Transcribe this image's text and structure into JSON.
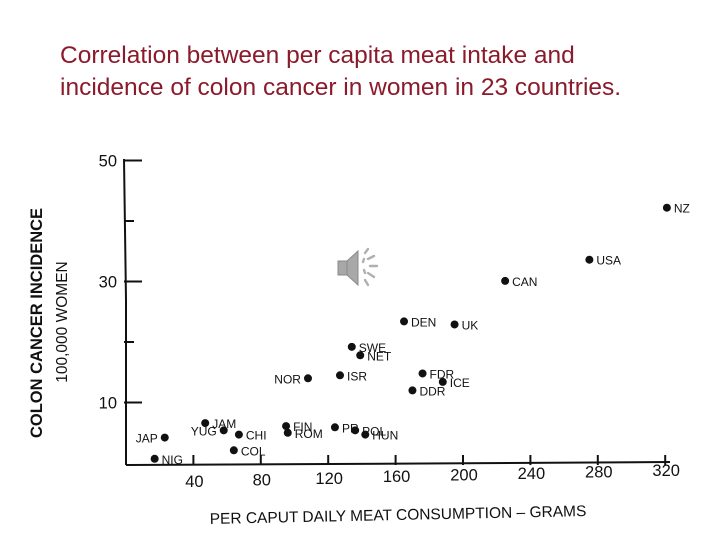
{
  "slide": {
    "title_line1": "Correlation between per capita meat intake and",
    "title_line2": "incidence of colon cancer in women in 23 countries."
  },
  "colors": {
    "title": "#8B1A2B",
    "ink": "#111111",
    "audio_icon": "#9a9a9a"
  },
  "icons": {
    "audio": "speaker-sound-icon"
  },
  "chart_data": {
    "type": "scatter",
    "title": "",
    "xlabel": "PER CAPUT DAILY MEAT CONSUMPTION – GRAMS",
    "ylabel_line1": "COLON CANCER INCIDENCE",
    "ylabel_line2": "100,000 WOMEN",
    "xlim": [
      0,
      330
    ],
    "ylim": [
      0,
      50
    ],
    "x_ticks": [
      40,
      80,
      120,
      160,
      200,
      240,
      280,
      320
    ],
    "y_ticks": [
      10,
      30,
      50
    ],
    "y_minor_ticks": [
      20,
      40
    ],
    "grid": false,
    "legend": "none",
    "points": [
      {
        "label": "NIG",
        "x": 17,
        "y": 0.7
      },
      {
        "label": "JAP",
        "x": 23,
        "y": 4.2
      },
      {
        "label": "JAM",
        "x": 47,
        "y": 6.6
      },
      {
        "label": "YUG",
        "x": 58,
        "y": 5.4
      },
      {
        "label": "CHI",
        "x": 67,
        "y": 4.7
      },
      {
        "label": "COL",
        "x": 64,
        "y": 2.1
      },
      {
        "label": "FIN",
        "x": 95,
        "y": 6.1
      },
      {
        "label": "ROM",
        "x": 96,
        "y": 5.0
      },
      {
        "label": "NOR",
        "x": 108,
        "y": 14.0
      },
      {
        "label": "PR",
        "x": 124,
        "y": 5.9
      },
      {
        "label": "ISR",
        "x": 127,
        "y": 14.5
      },
      {
        "label": "SWE",
        "x": 134,
        "y": 19.2
      },
      {
        "label": "NET",
        "x": 139,
        "y": 17.8
      },
      {
        "label": "POL",
        "x": 136,
        "y": 5.4
      },
      {
        "label": "HUN",
        "x": 142,
        "y": 4.7
      },
      {
        "label": "DEN",
        "x": 165,
        "y": 23.4
      },
      {
        "label": "FDR",
        "x": 176,
        "y": 14.8
      },
      {
        "label": "DDR",
        "x": 170,
        "y": 12.0
      },
      {
        "label": "ICE",
        "x": 188,
        "y": 13.4
      },
      {
        "label": "UK",
        "x": 195,
        "y": 22.9
      },
      {
        "label": "CAN",
        "x": 225,
        "y": 30.1
      },
      {
        "label": "USA",
        "x": 275,
        "y": 33.6
      },
      {
        "label": "NZ",
        "x": 321,
        "y": 42.2
      }
    ]
  }
}
